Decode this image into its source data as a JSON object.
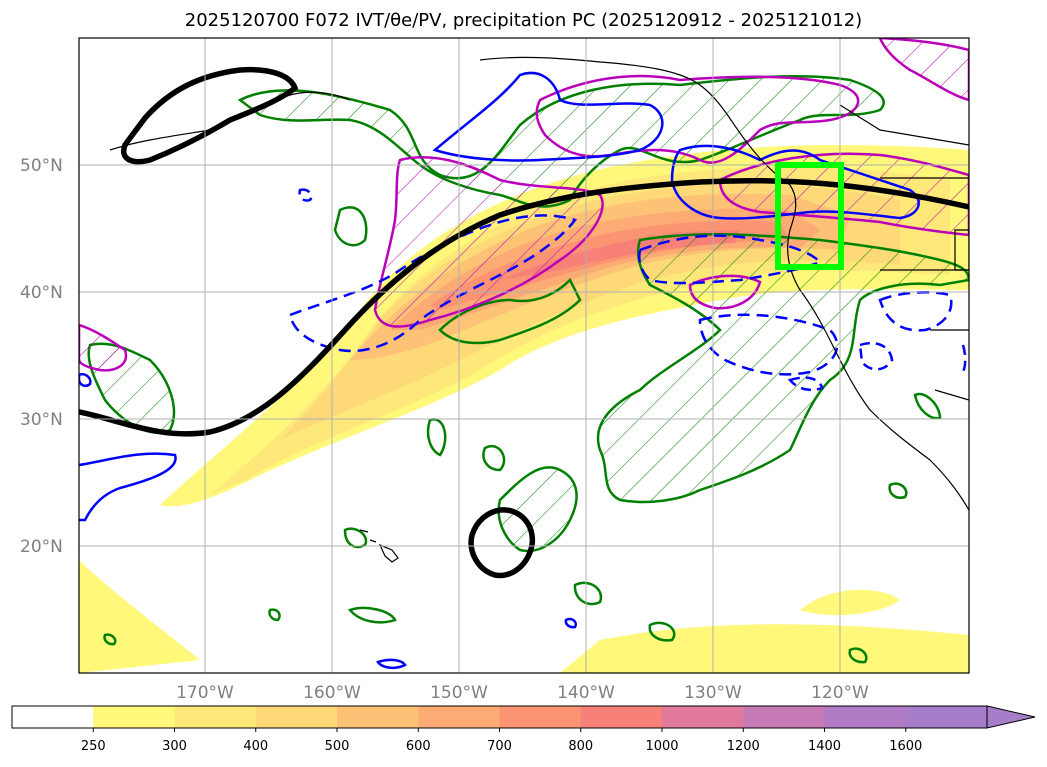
{
  "title": "2025120700 F072 IVT/θe/PV, precipitation PC (2025120912 - 2025121012)",
  "map": {
    "lat_labels": [
      "50°N",
      "40°N",
      "30°N",
      "20°N"
    ],
    "lon_labels": [
      "170°W",
      "160°W",
      "150°W",
      "140°W",
      "130°W",
      "120°W"
    ],
    "lat_range": [
      10,
      60
    ],
    "lon_range": [
      -180,
      -110
    ],
    "highlight_box": {
      "lon": [
        -125,
        -120
      ],
      "lat": [
        42,
        50
      ],
      "color": "#00ff00"
    }
  },
  "colorbar": {
    "ticks": [
      "250",
      "300",
      "400",
      "500",
      "600",
      "700",
      "800",
      "1000",
      "1200",
      "1400",
      "1600"
    ],
    "colors": [
      "#ffffff",
      "#fff87a",
      "#fee879",
      "#fdd978",
      "#fdc276",
      "#fcab75",
      "#fb9473",
      "#f78078",
      "#e0799a",
      "#c77ab5",
      "#b07bc4",
      "#a57dc8"
    ],
    "extend": "max"
  },
  "legend_colors": {
    "ivt_contour": "#000000",
    "theta_e_contour": "#0000ff",
    "pv_contour": "#bb00bb",
    "precip_contour": "#008000"
  }
}
